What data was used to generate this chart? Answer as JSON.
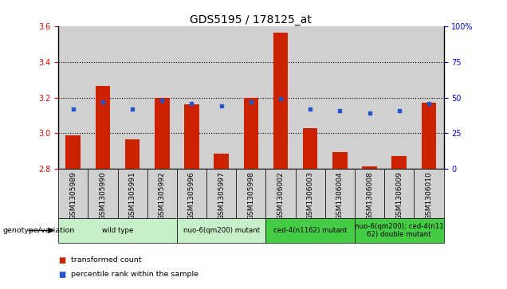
{
  "title": "GDS5195 / 178125_at",
  "samples": [
    "GSM1305989",
    "GSM1305990",
    "GSM1305991",
    "GSM1305992",
    "GSM1305996",
    "GSM1305997",
    "GSM1305998",
    "GSM1306002",
    "GSM1306003",
    "GSM1306004",
    "GSM1306008",
    "GSM1306009",
    "GSM1306010"
  ],
  "transformed_count": [
    2.99,
    3.265,
    2.965,
    3.2,
    3.16,
    2.885,
    3.2,
    3.565,
    3.03,
    2.895,
    2.815,
    2.875,
    3.17
  ],
  "percentile_rank": [
    42,
    47,
    42,
    48,
    46,
    44,
    47,
    49,
    42,
    41,
    39,
    41,
    46
  ],
  "ylim_left": [
    2.8,
    3.6
  ],
  "ylim_right": [
    0,
    100
  ],
  "yticks_left": [
    2.8,
    3.0,
    3.2,
    3.4,
    3.6
  ],
  "yticks_right": [
    0,
    25,
    50,
    75,
    100
  ],
  "groups": [
    {
      "label": "wild type",
      "indices": [
        0,
        1,
        2,
        3
      ],
      "color": "#c8f0c8"
    },
    {
      "label": "nuo-6(qm200) mutant",
      "indices": [
        4,
        5,
        6
      ],
      "color": "#c8f0c8"
    },
    {
      "label": "ced-4(n1162) mutant",
      "indices": [
        7,
        8,
        9
      ],
      "color": "#44cc44"
    },
    {
      "label": "nuo-6(qm200); ced-4(n11\n62) double mutant",
      "indices": [
        10,
        11,
        12
      ],
      "color": "#44cc44"
    }
  ],
  "bar_color": "#cc2200",
  "dot_color": "#2255cc",
  "bar_bottom": 2.8,
  "background_plot": "#ffffff",
  "background_table": "#d0d0d0",
  "title_fontsize": 10,
  "tick_fontsize": 7,
  "label_fontsize": 7.5
}
